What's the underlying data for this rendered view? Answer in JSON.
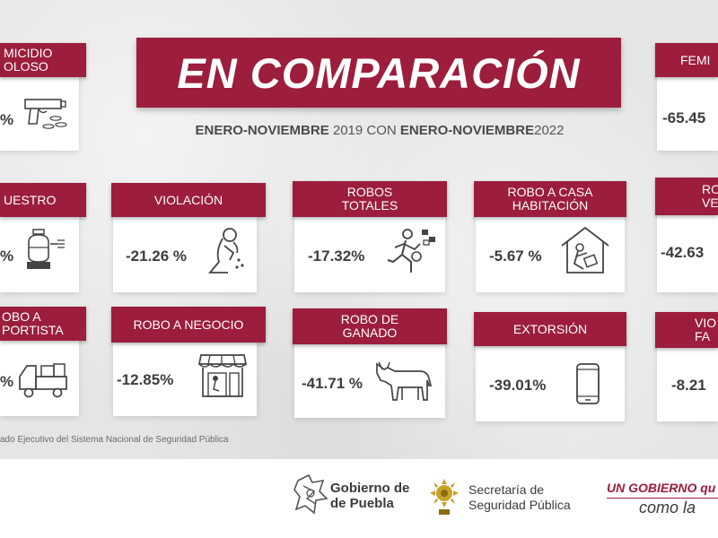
{
  "header": {
    "title": "EN COMPARACIÓN",
    "subtitle_bold_1": "ENERO-NOVIEMBRE",
    "subtitle_text_1": " 2019 CON ",
    "subtitle_bold_2": "ENERO-NOVIEMBRE",
    "subtitle_text_2": "2022"
  },
  "cards": {
    "homicidio": {
      "label": "MICIDIO\nOLOSO",
      "value": "%",
      "icon": "gun-icon"
    },
    "feminicidio": {
      "label": "FEMI",
      "value": "-65.45",
      "icon": ""
    },
    "secuestro": {
      "label": "UESTRO",
      "value": "%",
      "icon": "gas-tank-icon"
    },
    "violacion": {
      "label": "VIOLACIÓN",
      "value": "-21.26 %",
      "icon": "kneeling-victim-icon"
    },
    "robos_totales": {
      "label": "ROBOS\nTOTALES",
      "value": "-17.32%",
      "icon": "running-thief-icon"
    },
    "robo_casa": {
      "label": "ROBO A CASA\nHABITACIÓN",
      "value": "-5.67 %",
      "icon": "house-burglary-icon"
    },
    "robo_vehiculo": {
      "label": "RO\nVEH",
      "value": "-42.63",
      "icon": ""
    },
    "robo_transportista": {
      "label": "OBO A\nPORTISTA",
      "value": "%",
      "icon": "truck-icon"
    },
    "robo_negocio": {
      "label": "ROBO A NEGOCIO",
      "value": "-12.85%",
      "icon": "shop-icon"
    },
    "robo_ganado": {
      "label": "ROBO DE\nGANADO",
      "value": "-41.71 %",
      "icon": "cow-icon"
    },
    "extorsion": {
      "label": "EXTORSIÓN",
      "value": "-39.01%",
      "icon": "phone-icon"
    },
    "violencia_familiar": {
      "label": "VIO\nFA",
      "value": "-8.21",
      "icon": ""
    }
  },
  "source": "ado Ejecutivo del  Sistema Nacional de Seguridad Pública",
  "footer": {
    "puebla_line1": "Gobierno de",
    "puebla_line2": "de Puebla",
    "ssp_line1": "Secretaría de",
    "ssp_line2": "Seguridad Pública",
    "slogan_line1": "UN GOBIERNO qu",
    "slogan_line2": "como la"
  },
  "colors": {
    "brand": "#9c1d3c",
    "text": "#3d3d3d",
    "background": "#e6e5e5"
  }
}
